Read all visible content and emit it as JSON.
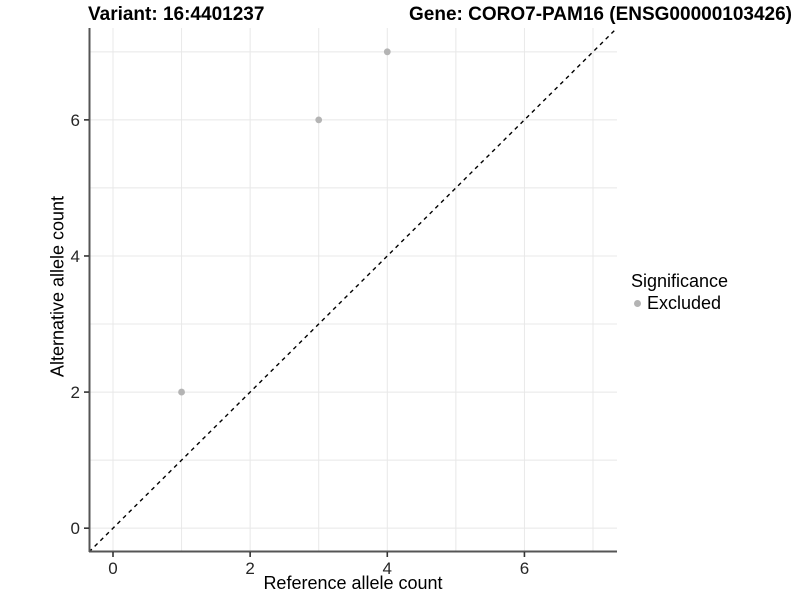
{
  "chart_data": {
    "type": "scatter",
    "title_left": "Variant: 16:4401237",
    "title_right": "Gene: CORO7-PAM16 (ENSG00000103426)",
    "xlabel": "Reference allele count",
    "ylabel": "Alternative allele count",
    "xlim": [
      -0.35,
      7.35
    ],
    "ylim": [
      -0.35,
      7.35
    ],
    "xticks": [
      0,
      2,
      4,
      6
    ],
    "yticks": [
      0,
      2,
      4,
      6
    ],
    "gridline_values": [
      0,
      1,
      2,
      3,
      4,
      5,
      6,
      7
    ],
    "grid": "on",
    "identity_line": {
      "equation": "y = x",
      "style": "dashed",
      "color": "#000000"
    },
    "series": [
      {
        "name": "Excluded",
        "color": "#b4b4b4",
        "points": [
          [
            1,
            2
          ],
          [
            3,
            6
          ],
          [
            4,
            7
          ]
        ]
      }
    ],
    "legend": {
      "title": "Significance",
      "position": "right",
      "items": [
        {
          "label": "Excluded",
          "color": "#b4b4b4"
        }
      ]
    },
    "colors": {
      "background": "#ffffff",
      "grid": "#e8e8e8",
      "axis_line": "#555555",
      "tick_mark": "#333333",
      "tick_label": "#262626",
      "title_text": "#000000"
    }
  }
}
